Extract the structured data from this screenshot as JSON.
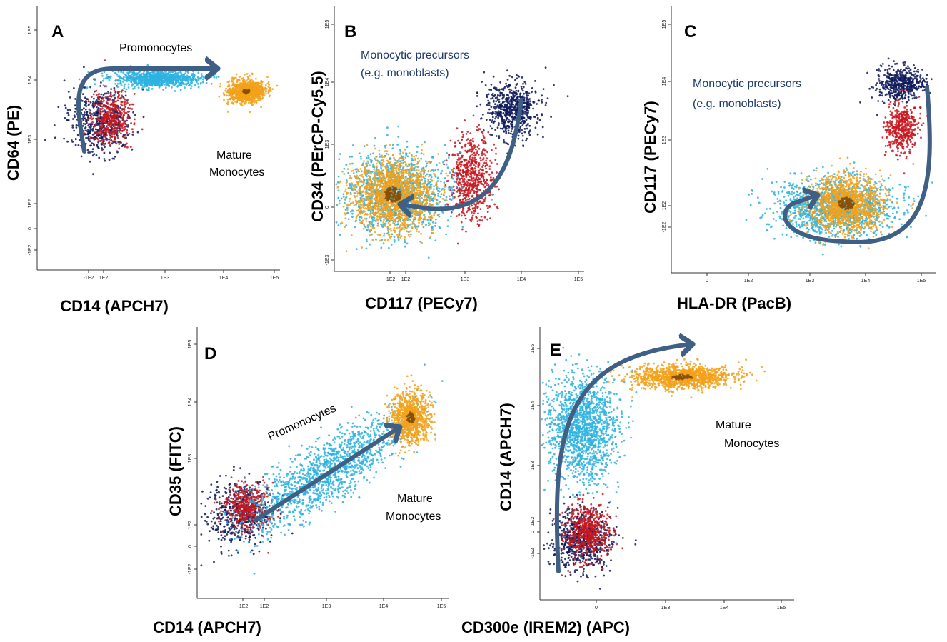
{
  "colors": {
    "dark_blue": "#0e1a5a",
    "red": "#c8161e",
    "cyan": "#2db3e0",
    "orange": "#f2a11a",
    "arrow": "#3f5f85"
  },
  "chart_data": [
    {
      "type": "scatter",
      "panel": "A",
      "xlabel": "CD14 (APCH7)",
      "ylabel": "CD64 (PE)",
      "x_ticks": [
        "-1E2",
        "1E2",
        "1E3",
        "1E4",
        "1E5"
      ],
      "y_ticks": [
        "-1E2",
        "0",
        "1E2",
        "1E3",
        "1E4",
        "1E5"
      ],
      "annotations": [
        "Promonocytes",
        "Mature",
        "Monocytes"
      ],
      "populations": [
        {
          "color": "dark_blue",
          "x_range": [
            -100,
            500
          ],
          "y_range": [
            100,
            8000
          ]
        },
        {
          "color": "red",
          "x_range": [
            -50,
            300
          ],
          "y_range": [
            150,
            8000
          ]
        },
        {
          "color": "cyan",
          "x_range": [
            100,
            8000
          ],
          "y_range": [
            4000,
            15000
          ]
        },
        {
          "color": "orange",
          "x_range": [
            8000,
            100000
          ],
          "y_range": [
            2000,
            12000
          ]
        }
      ]
    },
    {
      "type": "scatter",
      "panel": "B",
      "xlabel": "CD117 (PECy7)",
      "ylabel": "CD34 (PErCP-Cy5.5)",
      "x_ticks": [
        "-1E2",
        "1E2",
        "1E3",
        "1E4",
        "1E5"
      ],
      "y_ticks": [
        "-1E3",
        "0",
        "1E3",
        "1E4",
        "1E5"
      ],
      "annotations": [
        "Monocytic precursors",
        "(e.g. monoblasts)"
      ],
      "populations": [
        {
          "color": "dark_blue",
          "x_range": [
            2000,
            15000
          ],
          "y_range": [
            1000,
            10000
          ]
        },
        {
          "color": "red",
          "x_range": [
            500,
            5000
          ],
          "y_range": [
            -500,
            2000
          ]
        },
        {
          "color": "cyan",
          "x_range": [
            -300,
            700
          ],
          "y_range": [
            -1000,
            2000
          ]
        },
        {
          "color": "orange",
          "x_range": [
            -200,
            600
          ],
          "y_range": [
            -800,
            1500
          ]
        }
      ]
    },
    {
      "type": "scatter",
      "panel": "C",
      "xlabel": "HLA-DR (PacB)",
      "ylabel": "CD117 (PECy7)",
      "x_ticks": [
        "0",
        "1E2",
        "1E3",
        "1E4",
        "1E5"
      ],
      "y_ticks": [
        "-1E2",
        "1E2",
        "1E3",
        "1E4",
        "1E5"
      ],
      "annotations": [
        "Monocytic precursors",
        "(e.g. monoblasts)"
      ],
      "populations": [
        {
          "color": "dark_blue",
          "x_range": [
            30000,
            150000
          ],
          "y_range": [
            3000,
            20000
          ]
        },
        {
          "color": "red",
          "x_range": [
            30000,
            120000
          ],
          "y_range": [
            500,
            8000
          ]
        },
        {
          "color": "cyan",
          "x_range": [
            100,
            80000
          ],
          "y_range": [
            -200,
            500
          ]
        },
        {
          "color": "orange",
          "x_range": [
            300,
            50000
          ],
          "y_range": [
            -150,
            400
          ]
        }
      ]
    },
    {
      "type": "scatter",
      "panel": "D",
      "xlabel": "CD14 (APCH7)",
      "ylabel": "CD35 (FITC)",
      "x_ticks": [
        "-1E2",
        "1E2",
        "1E3",
        "1E4",
        "1E5"
      ],
      "y_ticks": [
        "-1E2",
        "0",
        "1E2",
        "1E3",
        "1E4",
        "1E5"
      ],
      "annotations": [
        "Promonocytes",
        "Mature",
        "Monocytes"
      ],
      "populations": [
        {
          "color": "dark_blue",
          "x_range": [
            -200,
            400
          ],
          "y_range": [
            -50,
            500
          ]
        },
        {
          "color": "red",
          "x_range": [
            -100,
            300
          ],
          "y_range": [
            0,
            400
          ]
        },
        {
          "color": "cyan",
          "x_range": [
            -100,
            20000
          ],
          "y_range": [
            0,
            20000
          ]
        },
        {
          "color": "orange",
          "x_range": [
            5000,
            60000
          ],
          "y_range": [
            2000,
            30000
          ]
        }
      ]
    },
    {
      "type": "scatter",
      "panel": "E",
      "xlabel": "CD300e (IREM2) (APC)",
      "ylabel": "CD14 (APCH7)",
      "x_ticks": [
        "0",
        "1E3",
        "1E4",
        "1E5"
      ],
      "y_ticks": [
        "-1E2",
        "0",
        "1E2",
        "1E3",
        "1E4",
        "1E5"
      ],
      "annotations": [
        "Mature",
        "Monocytes"
      ],
      "populations": [
        {
          "color": "dark_blue",
          "x_range": [
            -300,
            300
          ],
          "y_range": [
            -200,
            300
          ]
        },
        {
          "color": "red",
          "x_range": [
            -200,
            250
          ],
          "y_range": [
            -150,
            250
          ]
        },
        {
          "color": "cyan",
          "x_range": [
            -300,
            1000
          ],
          "y_range": [
            -100,
            20000
          ]
        },
        {
          "color": "orange",
          "x_range": [
            500,
            100000
          ],
          "y_range": [
            10000,
            50000
          ]
        }
      ]
    }
  ]
}
